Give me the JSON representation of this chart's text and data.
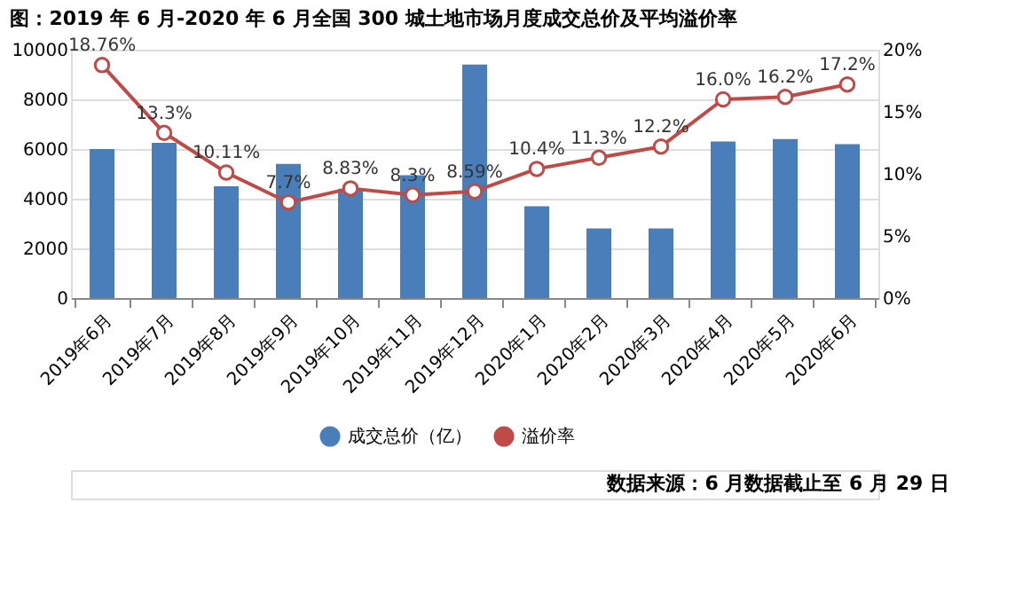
{
  "chart_data": {
    "type": "bar",
    "title": "图：2019 年 6 月-2020 年 6 月全国 300 城土地市场月度成交总价及平均溢价率",
    "categories": [
      "2019年6月",
      "2019年7月",
      "2019年8月",
      "2019年9月",
      "2019年10月",
      "2019年11月",
      "2019年12月",
      "2020年1月",
      "2020年2月",
      "2020年3月",
      "2020年4月",
      "2020年5月",
      "2020年6月"
    ],
    "series": [
      {
        "name": "成交总价（亿）",
        "color": "#4a7ebb",
        "values": [
          6000,
          6250,
          4500,
          5400,
          4400,
          4950,
          9400,
          3700,
          2800,
          2800,
          6300,
          6400,
          6200
        ]
      },
      {
        "name": "溢价率",
        "type": "line",
        "axis": "y2",
        "color": "#be4b48",
        "marker": "circle",
        "values": [
          18.76,
          13.3,
          10.11,
          7.7,
          8.83,
          8.3,
          8.59,
          10.4,
          11.3,
          12.2,
          16.0,
          16.2,
          17.2
        ],
        "value_labels": [
          "18.76%",
          "13.3%",
          "10.11%",
          "7.7%",
          "8.83%",
          "8.3%",
          "8.59%",
          "10.4%",
          "11.3%",
          "12.2%",
          "16.0%",
          "16.2%",
          "17.2%"
        ]
      }
    ],
    "ylim": [
      0,
      10000
    ],
    "yticks": [
      0,
      2000,
      4000,
      6000,
      8000,
      10000
    ],
    "y2lim": [
      0,
      20
    ],
    "y2ticks": [
      {
        "value": 0,
        "label": "0%"
      },
      {
        "value": 5,
        "label": "5%"
      },
      {
        "value": 10,
        "label": "10%"
      },
      {
        "value": 15,
        "label": "15%"
      },
      {
        "value": 20,
        "label": "20%"
      }
    ],
    "grid": "y",
    "legend": "bottom",
    "annotations": [
      "数据来源：6 月数据截止至 6 月 29 日"
    ]
  }
}
